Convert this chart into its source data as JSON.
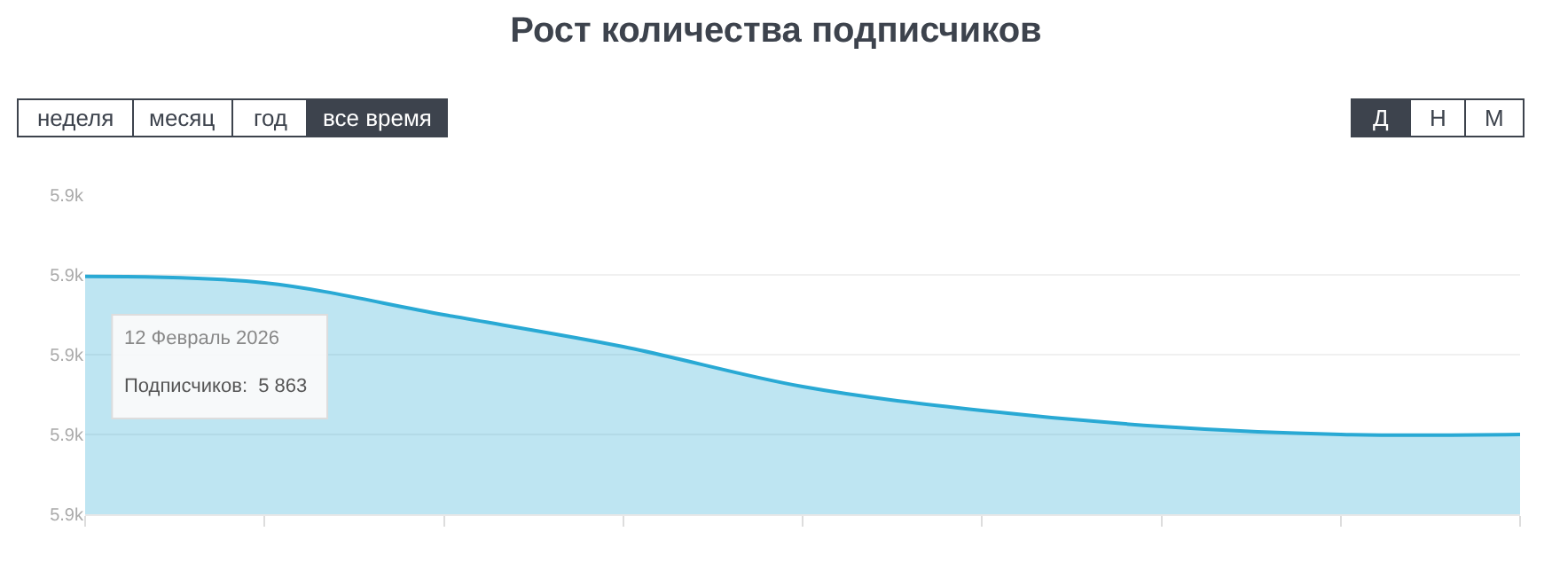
{
  "chart_data": {
    "type": "area",
    "title": "Рост количества подписчиков",
    "categories": [
      null,
      null,
      null,
      null,
      null,
      null,
      null,
      null,
      null
    ],
    "series": [
      {
        "color": "#29a9d4",
        "values": [
          5862.98,
          5862.9,
          5862.5,
          5862.1,
          5861.6,
          5861.3,
          5861.1,
          5861.0,
          5861.0
        ]
      }
    ],
    "ylim": [
      5860,
      5864
    ],
    "yticks": [
      {
        "value": 5860,
        "label": "5.9k"
      },
      {
        "value": 5861,
        "label": "5.9k"
      },
      {
        "value": 5862,
        "label": "5.9k"
      },
      {
        "value": 5863,
        "label": "5.9k"
      },
      {
        "value": 5864,
        "label": "5.9k"
      }
    ],
    "grid": "y",
    "annotations": [
      "неделя",
      "месяц",
      "год",
      "все время",
      "Д",
      "Н",
      "М",
      "12 Февраль 2026",
      "Подписчиков:  5 863"
    ]
  }
}
